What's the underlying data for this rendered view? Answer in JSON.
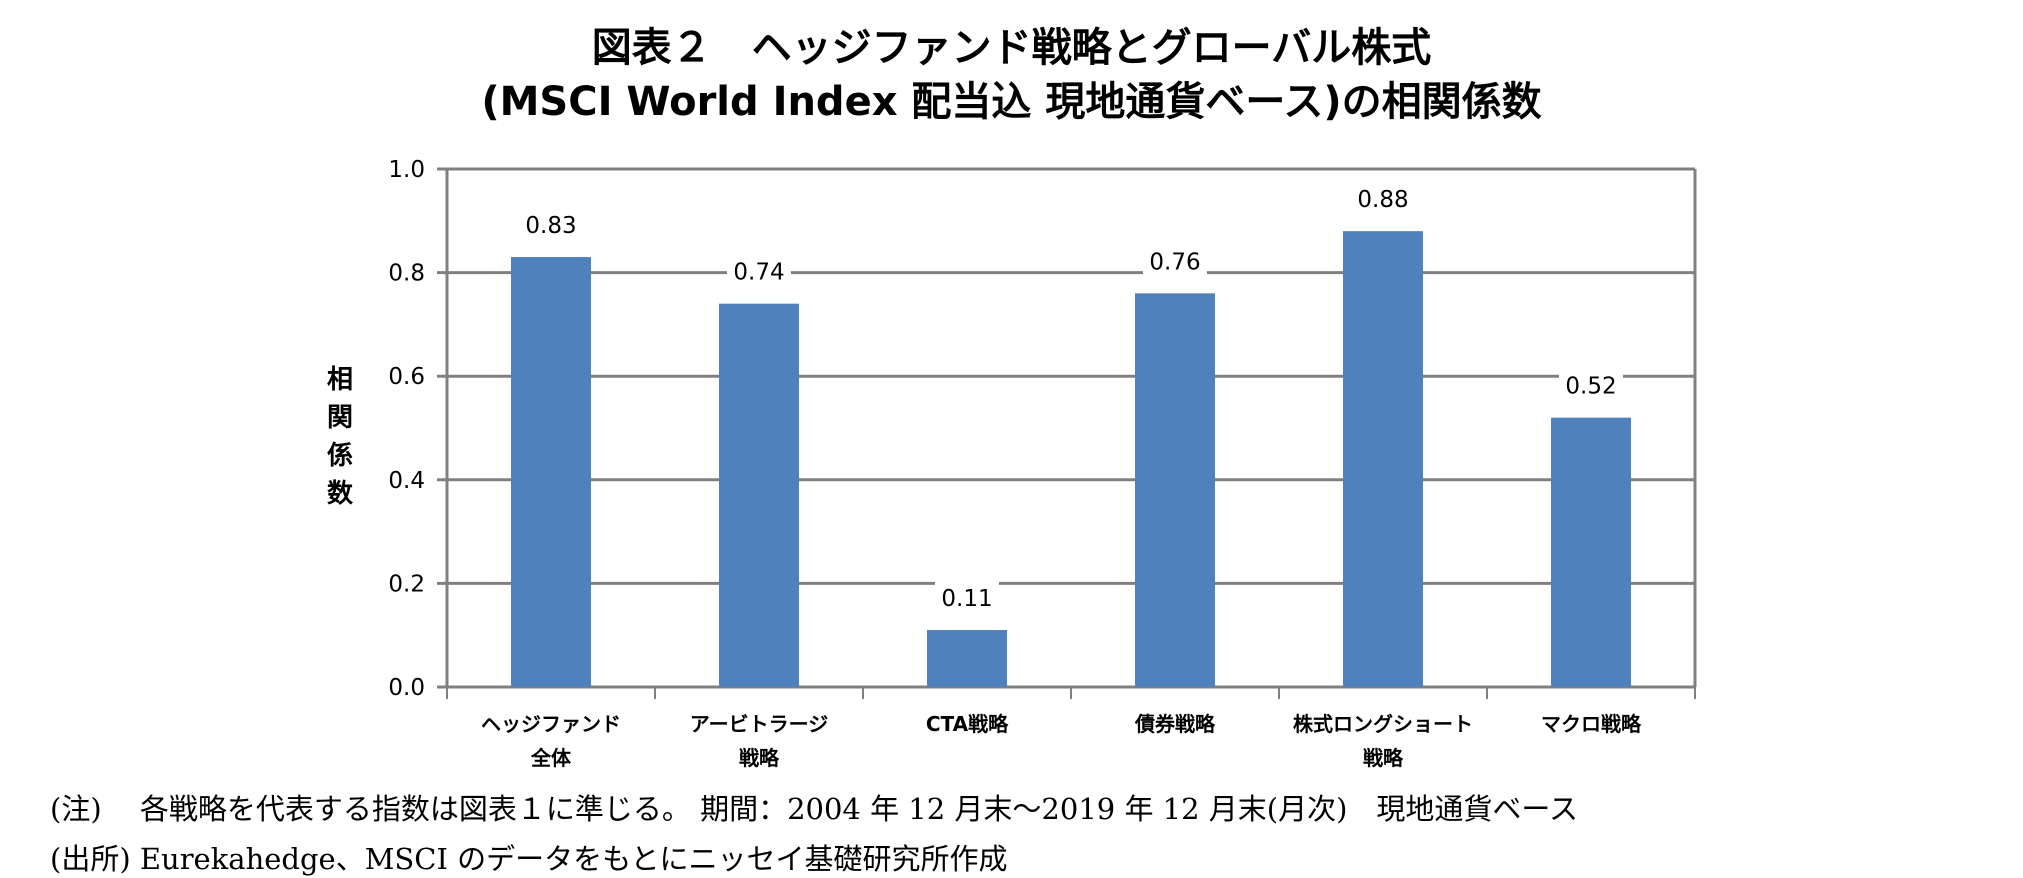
{
  "title": {
    "line1": "図表２　ヘッジファンド戦略とグローバル株式",
    "line2": "(MSCI World Index 配当込 現地通貨ベース)の相関係数"
  },
  "chart_data": {
    "type": "bar",
    "title": "図表２　ヘッジファンド戦略とグローバル株式 (MSCI World Index 配当込 現地通貨ベース)の相関係数",
    "xlabel": "",
    "ylabel": "相関係数",
    "categories": [
      [
        "ヘッジファンド",
        "全体"
      ],
      [
        "アービトラージ",
        "戦略"
      ],
      [
        "CTA戦略"
      ],
      [
        "債券戦略"
      ],
      [
        "株式ロングショート",
        "戦略"
      ],
      [
        "マクロ戦略"
      ]
    ],
    "values": [
      0.83,
      0.74,
      0.11,
      0.76,
      0.88,
      0.52
    ],
    "data_labels": [
      "0.83",
      "0.74",
      "0.11",
      "0.76",
      "0.88",
      "0.52"
    ],
    "ylim": [
      0,
      1.0
    ],
    "yticks": [
      "0.0",
      "0.2",
      "0.4",
      "0.6",
      "0.8",
      "1.0"
    ],
    "grid": true,
    "legend": "none",
    "bar_color": "#4F81BD",
    "grid_color": "#808080"
  },
  "notes": {
    "note": "(注)　 各戦略を代表する指数は図表１に準じる。 期間：2004 年 12 月末～2019 年 12 月末(月次)　現地通貨ベース",
    "source": "(出所) Eurekahedge、MSCI のデータをもとにニッセイ基礎研究所作成"
  }
}
